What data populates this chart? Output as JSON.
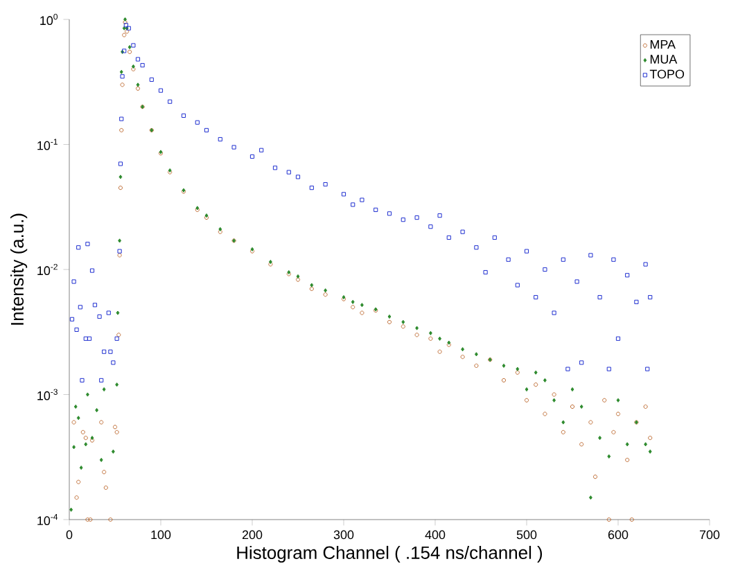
{
  "chart_data": {
    "type": "scatter",
    "xlabel": "Histogram Channel ( .154 ns/channel )",
    "ylabel": "Intensity (a.u.)",
    "log": "y",
    "legend": "top right",
    "grid": false,
    "xlim": [
      0,
      700
    ],
    "xticks": [
      0,
      100,
      200,
      300,
      400,
      500,
      600,
      700
    ],
    "ylim": [
      0.0001,
      1
    ],
    "yticks": [
      {
        "value": 0.0001,
        "label": "10$^{-4}$"
      },
      {
        "value": 0.001,
        "label": "10$^{-3}$"
      },
      {
        "value": 0.01,
        "label": "10$^{-2}$"
      },
      {
        "value": 0.1,
        "label": "10$^{-1}$"
      },
      {
        "value": 1,
        "label": "10$^{0}$"
      }
    ],
    "series": [
      {
        "name": "MPA",
        "color": "#c0703a",
        "marker": "circle",
        "x": [
          5,
          8,
          10,
          15,
          18,
          20,
          23,
          25,
          35,
          38,
          40,
          45,
          50,
          52,
          54,
          55,
          56,
          57,
          58,
          60,
          61,
          63,
          66,
          70,
          75,
          80,
          90,
          100,
          110,
          125,
          140,
          150,
          165,
          180,
          200,
          220,
          240,
          250,
          265,
          280,
          300,
          310,
          320,
          335,
          350,
          365,
          380,
          395,
          405,
          415,
          430,
          445,
          460,
          475,
          490,
          500,
          510,
          520,
          530,
          540,
          550,
          560,
          570,
          575,
          585,
          590,
          595,
          600,
          610,
          615,
          620,
          630,
          635
        ],
        "values": [
          0.0006,
          0.00015,
          0.0002,
          0.0005,
          0.00045,
          0.0001,
          0.0001,
          0.00043,
          0.0006,
          0.00024,
          0.00018,
          0.0001,
          0.00055,
          0.0005,
          0.003,
          0.013,
          0.045,
          0.13,
          0.3,
          0.75,
          0.95,
          0.8,
          0.55,
          0.4,
          0.28,
          0.2,
          0.13,
          0.085,
          0.06,
          0.042,
          0.03,
          0.026,
          0.02,
          0.017,
          0.014,
          0.011,
          0.0092,
          0.0083,
          0.007,
          0.0063,
          0.0058,
          0.005,
          0.0045,
          0.0047,
          0.0038,
          0.0035,
          0.003,
          0.0028,
          0.0022,
          0.0025,
          0.002,
          0.0017,
          0.0019,
          0.0013,
          0.0015,
          0.0009,
          0.0012,
          0.0007,
          0.001,
          0.0005,
          0.0008,
          0.0004,
          0.0006,
          0.00022,
          0.0009,
          0.0001,
          0.0005,
          0.0007,
          0.0003,
          0.0001,
          0.0006,
          0.0008,
          0.00045
        ]
      },
      {
        "name": "MUA",
        "color": "#2e8b2e",
        "marker": "diamond",
        "x": [
          2,
          5,
          7,
          10,
          13,
          18,
          20,
          25,
          30,
          35,
          38,
          48,
          52,
          53,
          55,
          56,
          57,
          58,
          60,
          61,
          63,
          66,
          70,
          75,
          80,
          90,
          100,
          110,
          125,
          140,
          150,
          165,
          180,
          200,
          220,
          240,
          250,
          265,
          280,
          300,
          310,
          320,
          335,
          350,
          365,
          380,
          395,
          405,
          415,
          430,
          445,
          460,
          475,
          490,
          500,
          510,
          520,
          530,
          540,
          550,
          560,
          570,
          580,
          590,
          600,
          610,
          620,
          630,
          635
        ],
        "values": [
          0.00012,
          0.00038,
          0.0008,
          0.00065,
          0.00026,
          0.0004,
          0.001,
          0.00045,
          0.00075,
          0.0003,
          0.0011,
          0.00035,
          0.0012,
          0.0045,
          0.017,
          0.055,
          0.38,
          0.55,
          0.85,
          1.0,
          0.85,
          0.6,
          0.42,
          0.3,
          0.2,
          0.13,
          0.087,
          0.062,
          0.043,
          0.031,
          0.027,
          0.021,
          0.017,
          0.0145,
          0.0115,
          0.0095,
          0.0088,
          0.0075,
          0.0068,
          0.006,
          0.0055,
          0.0052,
          0.0048,
          0.0042,
          0.0038,
          0.0034,
          0.0031,
          0.0028,
          0.0026,
          0.0023,
          0.0021,
          0.0019,
          0.0017,
          0.0016,
          0.0011,
          0.0015,
          0.0013,
          0.0009,
          0.0006,
          0.0011,
          0.0008,
          0.00015,
          0.00045,
          0.00032,
          0.0009,
          0.0004,
          0.0006,
          0.0004,
          0.00035
        ]
      },
      {
        "name": "TOPO",
        "color": "#1f2fd0",
        "marker": "square",
        "x": [
          3,
          5,
          8,
          10,
          12,
          14,
          18,
          20,
          22,
          25,
          28,
          33,
          35,
          38,
          43,
          45,
          48,
          52,
          55,
          56,
          57,
          58,
          60,
          62,
          65,
          70,
          75,
          80,
          90,
          100,
          110,
          125,
          140,
          150,
          165,
          180,
          200,
          210,
          225,
          240,
          250,
          265,
          280,
          300,
          310,
          320,
          335,
          350,
          365,
          380,
          395,
          405,
          415,
          430,
          445,
          455,
          465,
          480,
          490,
          500,
          510,
          520,
          530,
          540,
          545,
          555,
          560,
          570,
          580,
          590,
          595,
          600,
          610,
          620,
          630,
          632,
          635
        ],
        "values": [
          0.004,
          0.008,
          0.0033,
          0.015,
          0.005,
          0.0013,
          0.0028,
          0.016,
          0.0028,
          0.0098,
          0.0052,
          0.0042,
          0.0013,
          0.0022,
          0.0045,
          0.0022,
          0.0018,
          0.0028,
          0.014,
          0.07,
          0.16,
          0.35,
          0.56,
          0.9,
          0.85,
          0.62,
          0.48,
          0.43,
          0.33,
          0.27,
          0.22,
          0.17,
          0.15,
          0.13,
          0.11,
          0.095,
          0.08,
          0.09,
          0.065,
          0.06,
          0.055,
          0.045,
          0.048,
          0.04,
          0.033,
          0.036,
          0.03,
          0.028,
          0.025,
          0.026,
          0.022,
          0.027,
          0.018,
          0.02,
          0.015,
          0.0095,
          0.018,
          0.012,
          0.0075,
          0.014,
          0.006,
          0.01,
          0.0045,
          0.012,
          0.0016,
          0.008,
          0.0018,
          0.013,
          0.006,
          0.0016,
          0.012,
          0.0028,
          0.009,
          0.0055,
          0.011,
          0.0016,
          0.006
        ]
      }
    ]
  }
}
